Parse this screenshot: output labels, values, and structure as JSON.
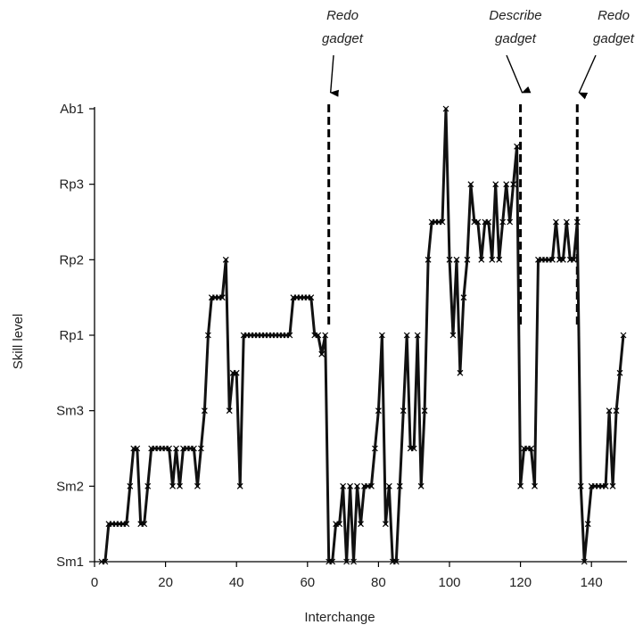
{
  "chart_data": {
    "type": "line",
    "title": "",
    "xlabel": "Interchange",
    "ylabel": "Skill level",
    "xlim": [
      0,
      150
    ],
    "x_ticks": [
      0,
      20,
      40,
      60,
      80,
      100,
      120,
      140
    ],
    "y_levels": [
      "Sm1",
      "Sm2",
      "Sm3",
      "Rp1",
      "Rp2",
      "Rp3",
      "Ab1"
    ],
    "grid": false,
    "marker": "x",
    "points": [
      [
        2,
        0
      ],
      [
        3,
        0
      ],
      [
        4,
        0.5
      ],
      [
        5,
        0.5
      ],
      [
        6,
        0.5
      ],
      [
        7,
        0.5
      ],
      [
        8,
        0.5
      ],
      [
        9,
        0.5
      ],
      [
        10,
        1
      ],
      [
        11,
        1.5
      ],
      [
        12,
        1.5
      ],
      [
        13,
        0.5
      ],
      [
        14,
        0.5
      ],
      [
        15,
        1
      ],
      [
        16,
        1.5
      ],
      [
        17,
        1.5
      ],
      [
        18,
        1.5
      ],
      [
        19,
        1.5
      ],
      [
        20,
        1.5
      ],
      [
        21,
        1.5
      ],
      [
        22,
        1
      ],
      [
        23,
        1.5
      ],
      [
        24,
        1
      ],
      [
        25,
        1.5
      ],
      [
        26,
        1.5
      ],
      [
        27,
        1.5
      ],
      [
        28,
        1.5
      ],
      [
        29,
        1
      ],
      [
        30,
        1.5
      ],
      [
        31,
        2
      ],
      [
        32,
        3
      ],
      [
        33,
        3.5
      ],
      [
        34,
        3.5
      ],
      [
        35,
        3.5
      ],
      [
        36,
        3.5
      ],
      [
        37,
        4
      ],
      [
        38,
        2
      ],
      [
        39,
        2.5
      ],
      [
        40,
        2.5
      ],
      [
        41,
        1
      ],
      [
        42,
        3
      ],
      [
        43,
        3
      ],
      [
        44,
        3
      ],
      [
        45,
        3
      ],
      [
        46,
        3
      ],
      [
        47,
        3
      ],
      [
        48,
        3
      ],
      [
        49,
        3
      ],
      [
        50,
        3
      ],
      [
        51,
        3
      ],
      [
        52,
        3
      ],
      [
        53,
        3
      ],
      [
        54,
        3
      ],
      [
        55,
        3
      ],
      [
        56,
        3.5
      ],
      [
        57,
        3.5
      ],
      [
        58,
        3.5
      ],
      [
        59,
        3.5
      ],
      [
        60,
        3.5
      ],
      [
        61,
        3.5
      ],
      [
        62,
        3
      ],
      [
        63,
        3
      ],
      [
        64,
        2.75
      ],
      [
        65,
        3
      ],
      [
        66,
        0
      ],
      [
        67,
        0
      ],
      [
        68,
        0.5
      ],
      [
        69,
        0.5
      ],
      [
        70,
        1
      ],
      [
        71,
        0
      ],
      [
        72,
        1
      ],
      [
        73,
        0
      ],
      [
        74,
        1
      ],
      [
        75,
        0.5
      ],
      [
        76,
        1
      ],
      [
        77,
        1
      ],
      [
        78,
        1
      ],
      [
        79,
        1.5
      ],
      [
        80,
        2
      ],
      [
        81,
        3
      ],
      [
        82,
        0.5
      ],
      [
        83,
        1
      ],
      [
        84,
        0
      ],
      [
        85,
        0
      ],
      [
        86,
        1
      ],
      [
        87,
        2
      ],
      [
        88,
        3
      ],
      [
        89,
        1.5
      ],
      [
        90,
        1.5
      ],
      [
        91,
        3
      ],
      [
        92,
        1
      ],
      [
        93,
        2
      ],
      [
        94,
        4
      ],
      [
        95,
        4.5
      ],
      [
        96,
        4.5
      ],
      [
        97,
        4.5
      ],
      [
        98,
        4.5
      ],
      [
        99,
        6
      ],
      [
        100,
        4
      ],
      [
        101,
        3
      ],
      [
        102,
        4
      ],
      [
        103,
        2.5
      ],
      [
        104,
        3.5
      ],
      [
        105,
        4
      ],
      [
        106,
        5
      ],
      [
        107,
        4.5
      ],
      [
        108,
        4.5
      ],
      [
        109,
        4
      ],
      [
        110,
        4.5
      ],
      [
        111,
        4.5
      ],
      [
        112,
        4
      ],
      [
        113,
        5
      ],
      [
        114,
        4
      ],
      [
        115,
        4.5
      ],
      [
        116,
        5
      ],
      [
        117,
        4.5
      ],
      [
        118,
        5
      ],
      [
        119,
        5.5
      ],
      [
        120,
        1
      ],
      [
        121,
        1.5
      ],
      [
        122,
        1.5
      ],
      [
        123,
        1.5
      ],
      [
        124,
        1
      ],
      [
        125,
        4
      ],
      [
        126,
        4
      ],
      [
        127,
        4
      ],
      [
        128,
        4
      ],
      [
        129,
        4
      ],
      [
        130,
        4.5
      ],
      [
        131,
        4
      ],
      [
        132,
        4
      ],
      [
        133,
        4.5
      ],
      [
        134,
        4
      ],
      [
        135,
        4
      ],
      [
        136,
        4.5
      ],
      [
        137,
        1
      ],
      [
        138,
        0
      ],
      [
        139,
        0.5
      ],
      [
        140,
        1
      ],
      [
        141,
        1
      ],
      [
        142,
        1
      ],
      [
        143,
        1
      ],
      [
        144,
        1
      ],
      [
        145,
        2
      ],
      [
        146,
        1
      ],
      [
        147,
        2
      ],
      [
        148,
        2.5
      ],
      [
        149,
        3
      ]
    ],
    "annotations": [
      {
        "x": 66,
        "lines": [
          "Redo",
          "gadget"
        ]
      },
      {
        "x": 120,
        "lines": [
          "Describe",
          "gadget"
        ]
      },
      {
        "x": 136,
        "lines": [
          "Redo",
          "gadget"
        ]
      }
    ]
  }
}
